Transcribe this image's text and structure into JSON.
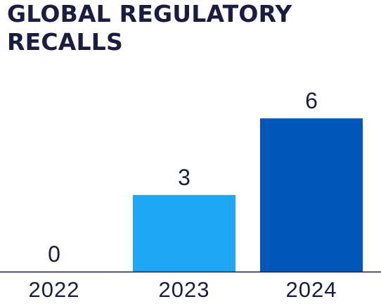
{
  "title": {
    "line1": "GLOBAL REGULATORY",
    "line2": "RECALLS"
  },
  "chart_data": {
    "type": "bar",
    "title": "GLOBAL REGULATORY RECALLS",
    "categories": [
      "2022",
      "2023",
      "2024"
    ],
    "values": [
      0,
      3,
      6
    ],
    "data_labels": [
      "0",
      "3",
      "6"
    ],
    "bar_colors": [
      "#1ea7f4",
      "#1ea7f4",
      "#0057b8"
    ],
    "axis_color": "#1a1d3f",
    "text_color": "#1a1d3f",
    "xlabel": "",
    "ylabel": "",
    "ylim": [
      0,
      6
    ],
    "grid": false,
    "legend": "none"
  }
}
